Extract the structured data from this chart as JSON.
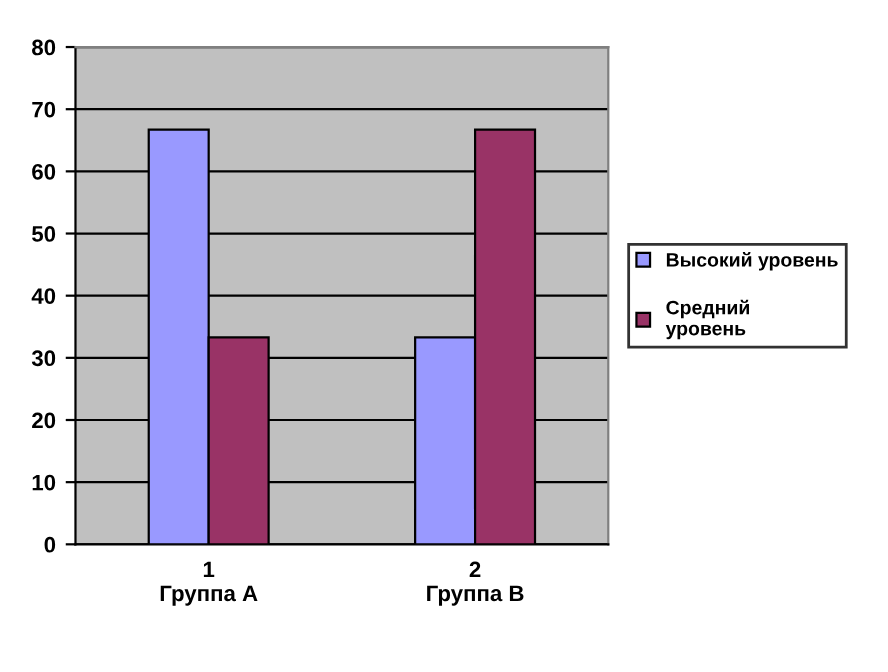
{
  "chart_data": {
    "type": "bar",
    "categories": [
      "1\nГруппа А",
      "2\nГруппа В"
    ],
    "series": [
      {
        "name": "Высокий уровень",
        "color": "#9999ff",
        "values": [
          66.7,
          33.3
        ]
      },
      {
        "name": "Средний уровень",
        "color": "#993366",
        "values": [
          33.3,
          66.7
        ]
      }
    ],
    "ylim": [
      0,
      80
    ],
    "yticks": [
      0,
      10,
      20,
      30,
      40,
      50,
      60,
      70,
      80
    ],
    "grid": "y",
    "legend": "right"
  }
}
